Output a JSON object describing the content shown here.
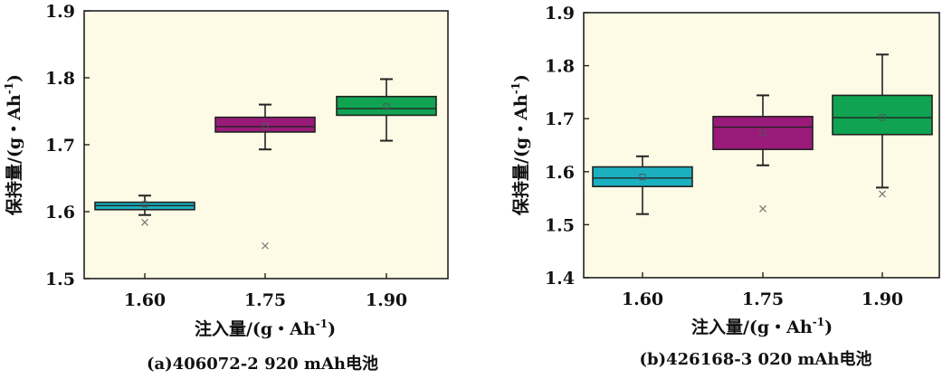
{
  "chart_data": [
    {
      "type": "box",
      "caption": "(a)406072-2 920 mAh电池",
      "xlabel_main": "注入量/(g・Ah",
      "xlabel_sup": "-1",
      "xlabel_end": ")",
      "ylabel_main": "保持量/(g・Ah",
      "ylabel_sup": "-1",
      "ylabel_end": ")",
      "categories": [
        "1.60",
        "1.75",
        "1.90"
      ],
      "ylim": [
        1.5,
        1.9
      ],
      "yticks": [
        "1.5",
        "1.6",
        "1.7",
        "1.8",
        "1.9"
      ],
      "background": "#fdfbe6",
      "boxes": [
        {
          "category": "1.60",
          "min": 1.595,
          "q1": 1.603,
          "median": 1.609,
          "q3": 1.614,
          "max": 1.624,
          "mean": 1.611,
          "outliers": [
            1.584
          ],
          "color": "#1ab0c0"
        },
        {
          "category": "1.75",
          "min": 1.693,
          "q1": 1.719,
          "median": 1.727,
          "q3": 1.741,
          "max": 1.76,
          "mean": 1.728,
          "outliers": [
            1.549
          ],
          "color": "#9a1a7a"
        },
        {
          "category": "1.90",
          "min": 1.706,
          "q1": 1.744,
          "median": 1.754,
          "q3": 1.772,
          "max": 1.798,
          "mean": 1.757,
          "outliers": [],
          "color": "#0fa352"
        }
      ]
    },
    {
      "type": "box",
      "caption": "(b)426168-3 020 mAh电池",
      "xlabel_main": "注入量/(g・Ah",
      "xlabel_sup": "-1",
      "xlabel_end": ")",
      "ylabel_main": "保持量/(g・Ah",
      "ylabel_sup": "-1",
      "ylabel_end": ")",
      "categories": [
        "1.60",
        "1.75",
        "1.90"
      ],
      "ylim": [
        1.4,
        1.9
      ],
      "yticks": [
        "1.4",
        "1.5",
        "1.6",
        "1.7",
        "1.8",
        "1.9"
      ],
      "background": "#fdfbe6",
      "boxes": [
        {
          "category": "1.60",
          "min": 1.52,
          "q1": 1.572,
          "median": 1.588,
          "q3": 1.609,
          "max": 1.629,
          "mean": 1.59,
          "outliers": [],
          "color": "#1ab0c0"
        },
        {
          "category": "1.75",
          "min": 1.612,
          "q1": 1.642,
          "median": 1.684,
          "q3": 1.704,
          "max": 1.744,
          "mean": 1.673,
          "outliers": [
            1.53
          ],
          "color": "#9a1a7a"
        },
        {
          "category": "1.90",
          "min": 1.57,
          "q1": 1.67,
          "median": 1.702,
          "q3": 1.744,
          "max": 1.821,
          "mean": 1.702,
          "outliers": [
            1.558
          ],
          "color": "#0fa352"
        }
      ]
    }
  ]
}
